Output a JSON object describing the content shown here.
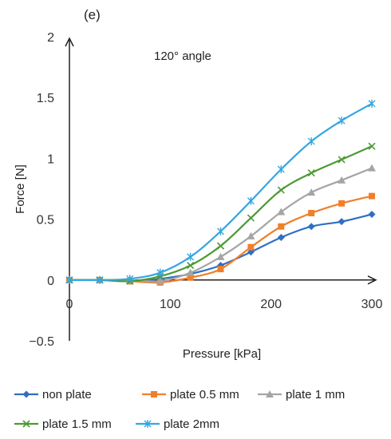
{
  "chart_data": {
    "type": "line",
    "panel_label": "(e)",
    "annotation": "120° angle",
    "xlabel": "Pressure [kPa]",
    "ylabel": "Force [N]",
    "xlim": [
      0,
      300
    ],
    "ylim": [
      -0.5,
      2
    ],
    "x_ticks": [
      "0",
      "100",
      "200",
      "300"
    ],
    "y_ticks": [
      "2",
      "1.5",
      "1",
      "0.5",
      "0",
      "−0.5"
    ],
    "grid": false,
    "legend_position": "bottom",
    "x": [
      0,
      30,
      60,
      90,
      120,
      150,
      180,
      210,
      240,
      270,
      300
    ],
    "series": [
      {
        "name": "non plate",
        "color": "#2f6fc2",
        "marker": "diamond",
        "values": [
          0,
          0,
          -0.01,
          0.01,
          0.05,
          0.12,
          0.23,
          0.35,
          0.44,
          0.48,
          0.54
        ]
      },
      {
        "name": "plate 0.5 mm",
        "color": "#f07f2a",
        "marker": "square",
        "values": [
          0,
          0,
          -0.01,
          -0.02,
          0.02,
          0.09,
          0.27,
          0.44,
          0.55,
          0.63,
          0.69
        ]
      },
      {
        "name": "plate 1 mm",
        "color": "#a5a5a5",
        "marker": "triangle",
        "values": [
          0,
          0,
          0,
          -0.01,
          0.06,
          0.19,
          0.36,
          0.56,
          0.72,
          0.82,
          0.92
        ]
      },
      {
        "name": "plate 1.5 mm",
        "color": "#4b9a34",
        "marker": "x",
        "values": [
          0,
          0,
          -0.01,
          0.03,
          0.12,
          0.28,
          0.51,
          0.74,
          0.88,
          0.99,
          1.1
        ]
      },
      {
        "name": "plate 2mm",
        "color": "#35a6e0",
        "marker": "star",
        "values": [
          0,
          0,
          0.01,
          0.06,
          0.19,
          0.4,
          0.65,
          0.91,
          1.14,
          1.31,
          1.45
        ]
      }
    ]
  }
}
